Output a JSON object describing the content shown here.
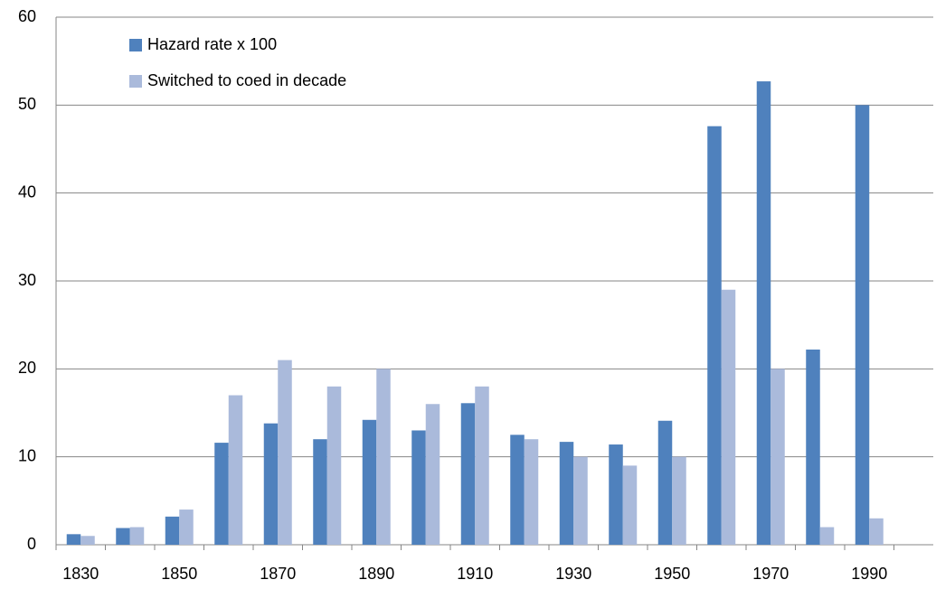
{
  "chart_data": {
    "type": "bar",
    "categories": [
      1830,
      null,
      1850,
      null,
      1870,
      null,
      1890,
      null,
      1910,
      null,
      1930,
      null,
      1950,
      null,
      1970,
      null,
      1990
    ],
    "series": [
      {
        "name": "Hazard rate x 100",
        "color": "#4f81bd",
        "values": [
          1.2,
          1.9,
          3.2,
          11.6,
          13.8,
          12.0,
          14.2,
          13.0,
          16.1,
          12.5,
          11.7,
          11.4,
          14.1,
          47.6,
          52.7,
          22.2,
          50.0
        ]
      },
      {
        "name": "Switched to coed in decade",
        "color": "#aabadb",
        "values": [
          1,
          2,
          4,
          17,
          21,
          18,
          20,
          16,
          18,
          12,
          10,
          9,
          10,
          29,
          20,
          2,
          3
        ]
      }
    ],
    "ylim": [
      0,
      60
    ],
    "yticks": [
      0,
      10,
      20,
      30,
      40,
      50,
      60
    ],
    "grid": true,
    "legend": "top-left"
  }
}
